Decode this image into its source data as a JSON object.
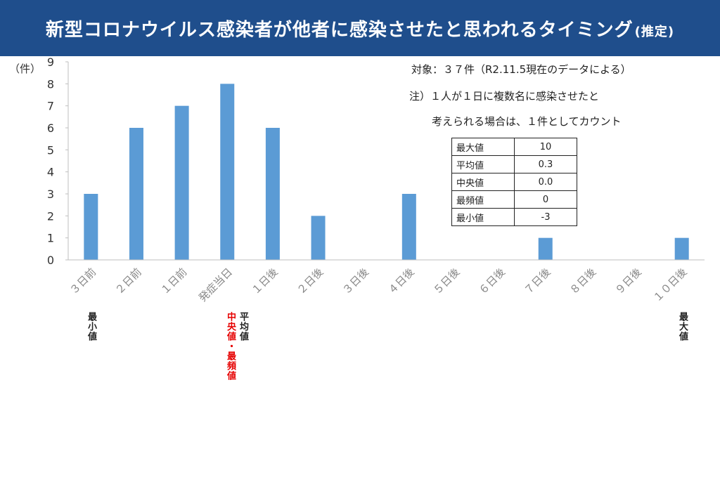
{
  "header": {
    "title_main": "新型コロナウイルス感染者が他者に感染させたと思われるタイミング",
    "title_suffix": "(推定)"
  },
  "notes": {
    "target": "対象：３７件（R2.11.5現在のデータによる）",
    "note_line1": "注）１人が１日に複数名に感染させたと",
    "note_line2": "考えられる場合は、１件としてカウント"
  },
  "stats_table": [
    {
      "label": "最大値",
      "value": "10"
    },
    {
      "label": "平均値",
      "value": "0.3"
    },
    {
      "label": "中央値",
      "value": "0.0"
    },
    {
      "label": "最頻値",
      "value": "0"
    },
    {
      "label": "最小値",
      "value": "-3"
    }
  ],
  "markers": {
    "min": "最小値",
    "mean": "平均値",
    "median_mode": "中央値・最頻値",
    "max": "最大値"
  },
  "colors": {
    "header_bg": "#1f4e8c",
    "bar": "#5b9bd5",
    "highlight": "#e60000"
  },
  "chart_data": {
    "type": "bar",
    "categories": [
      "３日前",
      "２日前",
      "１日前",
      "発症当日",
      "１日後",
      "２日後",
      "３日後",
      "４日後",
      "５日後",
      "６日後",
      "７日後",
      "８日後",
      "９日後",
      "１０日後"
    ],
    "values": [
      3,
      6,
      7,
      8,
      6,
      2,
      0,
      3,
      0,
      0,
      1,
      0,
      0,
      1
    ],
    "ylabel": "（件）",
    "ylim": [
      0,
      9
    ],
    "yticks": [
      0,
      1,
      2,
      3,
      4,
      5,
      6,
      7,
      8,
      9
    ],
    "grid": false,
    "legend": "none"
  }
}
